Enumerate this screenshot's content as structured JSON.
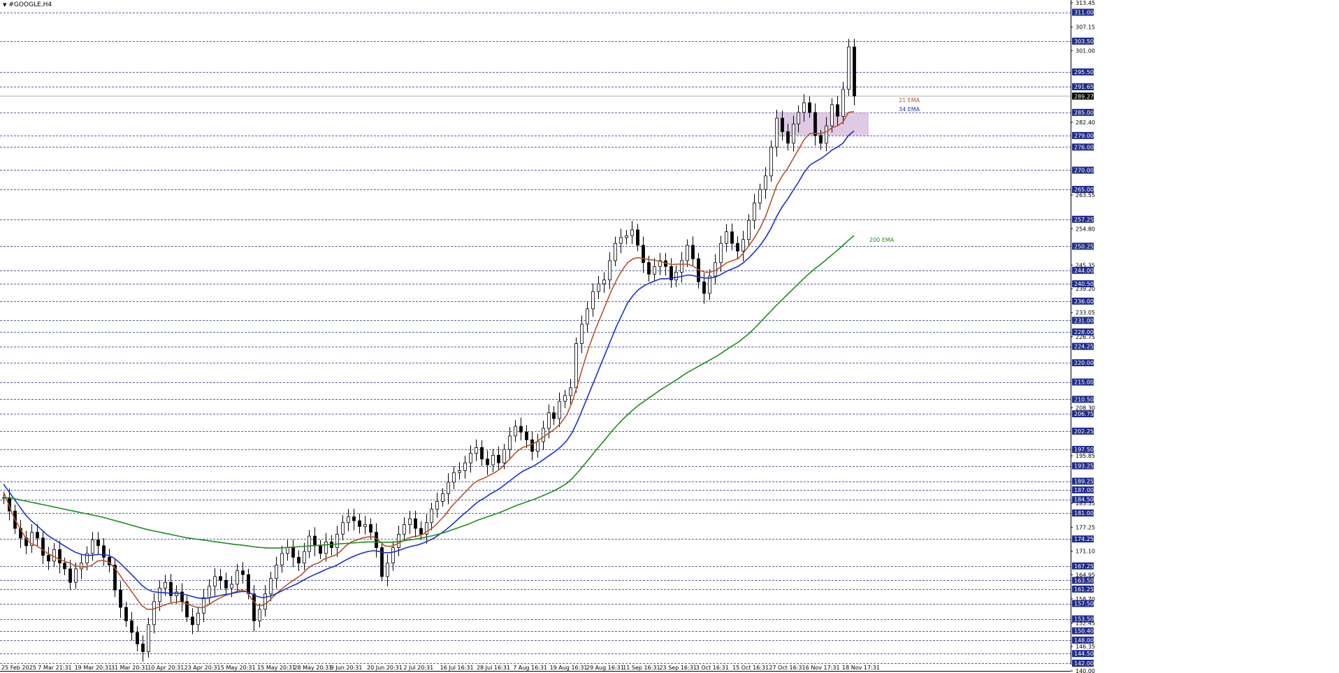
{
  "window": {
    "title": "#GOOGLE,H4",
    "menu_icon": "triangle-down-icon"
  },
  "colors": {
    "background": "#ffffff",
    "candle": "#000000",
    "ema21": "#b5532a",
    "ema34": "#1a2fd6",
    "ema200": "#1e8c1e",
    "level_line": "#1f2b8a",
    "highlight_box": "#c9a7d6",
    "current_price_line": "#9a9a9a"
  },
  "chart_data": {
    "type": "candlestick",
    "symbol": "#GOOGLE",
    "timeframe": "H4",
    "ylim": [
      140.0,
      313.45
    ],
    "x_tick_labels": [
      "25 Feb 2025",
      "7 Mar 21:31",
      "19 Mar 20:31",
      "31 Mar 20:31",
      "10 Apr 20:31",
      "23 Apr 20:31",
      "5 May 20:31",
      "15 May 20:31",
      "28 May 20:31",
      "9 Jun 20:31",
      "20 Jun 20:31",
      "2 Jul 20:31",
      "16 Jul 16:31",
      "28 Jul 16:31",
      "7 Aug 16:31",
      "19 Aug 16:31",
      "29 Aug 16:31",
      "11 Sep 16:31",
      "23 Sep 16:31",
      "3 Oct 16:31",
      "15 Oct 16:31",
      "27 Oct 16:31",
      "6 Nov 17:31",
      "18 Nov 17:31"
    ],
    "y_scale_labels": [
      "313.45",
      "307.15",
      "301.00",
      "282.40",
      "263.55",
      "254.80",
      "245.35",
      "239.20",
      "233.05",
      "226.75",
      "208.30",
      "195.85",
      "183.55",
      "177.25",
      "171.10",
      "164.95",
      "158.70",
      "152.45",
      "146.35",
      "140.00"
    ],
    "horizontal_levels": [
      "311.00",
      "303.50",
      "295.50",
      "291.65",
      "285.00",
      "279.00",
      "276.00",
      "270.00",
      "265.00",
      "257.25",
      "250.25",
      "244.00",
      "240.50",
      "236.00",
      "231.00",
      "228.00",
      "224.25",
      "220.00",
      "215.00",
      "210.50",
      "206.75",
      "202.25",
      "197.50",
      "193.25",
      "189.25",
      "187.00",
      "184.50",
      "181.00",
      "174.25",
      "167.25",
      "163.50",
      "161.25",
      "157.50",
      "153.50",
      "150.40",
      "148.00",
      "144.50",
      "142.00"
    ],
    "current_price": "289.27",
    "highlight_zone": [
      279.0,
      285.0
    ],
    "closes": [
      185.0,
      181.5,
      177.0,
      174.5,
      172.5,
      176.0,
      174.5,
      170.0,
      168.5,
      171.5,
      168.0,
      166.5,
      163.0,
      166.5,
      168.0,
      170.5,
      174.0,
      172.5,
      169.5,
      167.5,
      161.0,
      156.5,
      153.0,
      150.0,
      147.0,
      145.0,
      152.0,
      158.0,
      161.5,
      163.0,
      159.5,
      160.5,
      158.0,
      154.0,
      152.0,
      155.0,
      159.0,
      162.0,
      164.5,
      163.5,
      161.5,
      162.5,
      166.0,
      165.0,
      160.0,
      153.0,
      156.0,
      160.0,
      164.0,
      167.5,
      170.5,
      172.0,
      169.5,
      168.0,
      171.0,
      175.0,
      172.5,
      170.5,
      173.5,
      172.0,
      175.5,
      178.5,
      180.0,
      179.0,
      177.5,
      178.0,
      176.0,
      172.0,
      164.5,
      168.0,
      172.0,
      175.5,
      178.0,
      179.5,
      177.0,
      175.5,
      178.5,
      182.0,
      184.0,
      186.0,
      189.0,
      191.5,
      192.0,
      194.0,
      196.5,
      198.0,
      195.0,
      193.5,
      196.0,
      194.0,
      197.5,
      201.0,
      203.5,
      202.0,
      200.0,
      197.0,
      199.5,
      203.0,
      207.0,
      205.5,
      210.0,
      211.5,
      213.5,
      225.0,
      230.0,
      234.0,
      238.5,
      240.5,
      241.5,
      246.5,
      251.0,
      252.5,
      253.0,
      254.5,
      250.5,
      246.0,
      243.0,
      245.0,
      246.5,
      245.0,
      241.5,
      243.5,
      246.5,
      250.5,
      247.0,
      241.0,
      238.0,
      242.5,
      246.0,
      251.0,
      254.0,
      251.0,
      249.0,
      252.0,
      257.0,
      261.5,
      265.0,
      268.5,
      276.0,
      283.5,
      280.0,
      277.0,
      282.0,
      285.0,
      287.5,
      285.0,
      279.0,
      277.0,
      281.5,
      287.0,
      284.0,
      291.0,
      302.0,
      289.27
    ],
    "series": [
      {
        "name": "21 EMA",
        "values": [
          186.5,
          183.0,
          179.5,
          177.0,
          174.5,
          173.0,
          172.5,
          171.5,
          170.5,
          169.8,
          169.0,
          168.5,
          168.0,
          167.3,
          167.0,
          167.0,
          167.4,
          168.5,
          168.7,
          168.3,
          167.0,
          165.0,
          163.0,
          161.0,
          159.0,
          157.0,
          156.0,
          156.0,
          156.5,
          157.0,
          157.5,
          157.8,
          158.0,
          157.5,
          157.0,
          156.5,
          156.4,
          157.0,
          158.0,
          158.8,
          159.5,
          160.0,
          160.5,
          161.0,
          160.6,
          158.5,
          157.0,
          157.0,
          158.0,
          159.5,
          160.8,
          162.0,
          163.0,
          164.0,
          165.0,
          166.5,
          167.5,
          168.0,
          169.0,
          169.5,
          170.0,
          171.0,
          172.5,
          173.5,
          174.0,
          174.5,
          174.8,
          174.8,
          173.8,
          172.5,
          172.3,
          172.8,
          173.5,
          174.3,
          174.8,
          175.0,
          175.5,
          176.5,
          177.5,
          179.0,
          180.5,
          182.5,
          184.0,
          185.5,
          187.0,
          188.5,
          189.5,
          190.0,
          190.8,
          191.5,
          192.5,
          194.0,
          195.5,
          197.0,
          198.0,
          198.5,
          199.0,
          200.0,
          201.0,
          202.0,
          203.0,
          204.5,
          206.5,
          210.0,
          214.5,
          219.5,
          224.0,
          228.0,
          231.5,
          235.0,
          238.5,
          241.5,
          244.0,
          246.0,
          247.0,
          247.3,
          247.0,
          246.8,
          246.6,
          246.3,
          245.8,
          245.5,
          245.6,
          245.6,
          245.6,
          245.0,
          244.0,
          243.5,
          243.5,
          244.0,
          245.0,
          246.0,
          246.5,
          247.0,
          248.5,
          250.5,
          252.5,
          255.0,
          258.0,
          262.0,
          266.0,
          268.5,
          270.5,
          273.0,
          275.5,
          278.0,
          279.5,
          279.5,
          279.5,
          280.0,
          281.0,
          281.5,
          282.5,
          285.0,
          285.2
        ]
      },
      {
        "name": "34 EMA",
        "values": [
          188.5,
          186.5,
          184.5,
          182.5,
          180.5,
          179.0,
          177.8,
          176.5,
          175.2,
          174.3,
          173.4,
          172.5,
          171.6,
          170.8,
          170.3,
          170.0,
          170.0,
          170.2,
          170.2,
          170.0,
          169.3,
          168.1,
          166.7,
          165.3,
          163.8,
          162.3,
          161.2,
          160.6,
          160.4,
          160.3,
          160.2,
          160.2,
          160.1,
          159.8,
          159.4,
          159.0,
          158.8,
          158.9,
          159.2,
          159.5,
          159.8,
          160.0,
          160.3,
          160.6,
          160.6,
          160.0,
          159.3,
          159.0,
          159.3,
          159.8,
          160.5,
          161.2,
          161.9,
          162.5,
          163.3,
          164.1,
          164.8,
          165.4,
          166.1,
          166.7,
          167.2,
          168.0,
          168.8,
          169.5,
          170.1,
          170.6,
          171.0,
          171.2,
          171.0,
          170.7,
          170.7,
          171.0,
          171.5,
          172.0,
          172.4,
          172.7,
          173.2,
          173.8,
          174.5,
          175.5,
          176.5,
          177.7,
          179.0,
          180.3,
          181.5,
          182.8,
          184.0,
          184.8,
          185.8,
          186.6,
          187.5,
          188.6,
          189.7,
          190.8,
          191.8,
          192.5,
          193.2,
          194.1,
          195.1,
          196.1,
          197.1,
          198.3,
          199.8,
          202.0,
          205.0,
          208.5,
          212.0,
          215.5,
          219.0,
          222.5,
          226.0,
          229.5,
          232.5,
          235.5,
          237.5,
          239.0,
          240.0,
          240.7,
          241.3,
          241.8,
          241.8,
          242.0,
          242.2,
          242.5,
          242.8,
          242.6,
          242.2,
          242.0,
          242.0,
          242.3,
          243.0,
          243.8,
          244.4,
          245.0,
          246.0,
          247.3,
          248.8,
          250.5,
          252.5,
          255.0,
          258.0,
          260.5,
          262.5,
          264.8,
          267.0,
          269.5,
          271.3,
          272.2,
          273.0,
          274.0,
          275.2,
          276.0,
          277.0,
          279.0,
          280.2
        ]
      },
      {
        "name": "200 EMA",
        "values": [
          185.0,
          184.9,
          184.7,
          184.4,
          184.1,
          183.8,
          183.5,
          183.2,
          182.9,
          182.6,
          182.3,
          182.0,
          181.7,
          181.4,
          181.1,
          180.8,
          180.5,
          180.2,
          179.9,
          179.5,
          179.1,
          178.7,
          178.3,
          177.9,
          177.5,
          177.1,
          176.7,
          176.4,
          176.1,
          175.8,
          175.5,
          175.2,
          174.9,
          174.6,
          174.4,
          174.2,
          174.0,
          173.8,
          173.6,
          173.4,
          173.2,
          173.0,
          172.8,
          172.7,
          172.5,
          172.3,
          172.1,
          172.0,
          171.9,
          171.9,
          171.9,
          172.0,
          172.1,
          172.2,
          172.3,
          172.4,
          172.5,
          172.6,
          172.7,
          172.8,
          172.9,
          173.0,
          173.1,
          173.2,
          173.3,
          173.4,
          173.5,
          173.5,
          173.4,
          173.4,
          173.4,
          173.5,
          173.7,
          173.9,
          174.1,
          174.3,
          174.6,
          174.9,
          175.2,
          175.6,
          176.0,
          176.5,
          177.0,
          177.5,
          178.0,
          178.6,
          179.2,
          179.7,
          180.2,
          180.7,
          181.2,
          181.8,
          182.4,
          183.0,
          183.5,
          184.0,
          184.5,
          185.1,
          185.7,
          186.3,
          187.0,
          187.8,
          188.7,
          190.0,
          191.6,
          193.3,
          195.0,
          196.8,
          198.5,
          200.2,
          202.0,
          203.6,
          205.1,
          206.5,
          207.8,
          209.0,
          210.0,
          211.0,
          212.0,
          213.0,
          213.9,
          214.8,
          215.7,
          216.7,
          217.6,
          218.4,
          219.2,
          220.0,
          220.8,
          221.6,
          222.5,
          223.5,
          224.4,
          225.3,
          226.4,
          227.6,
          229.0,
          230.5,
          232.0,
          233.5,
          235.0,
          236.4,
          237.8,
          239.2,
          240.6,
          242.0,
          243.3,
          244.5,
          245.6,
          246.8,
          248.0,
          249.2,
          250.5,
          251.8,
          253.0
        ]
      }
    ],
    "annotations": [
      "21 EMA",
      "34 EMA",
      "200 EMA"
    ],
    "grid": false
  }
}
